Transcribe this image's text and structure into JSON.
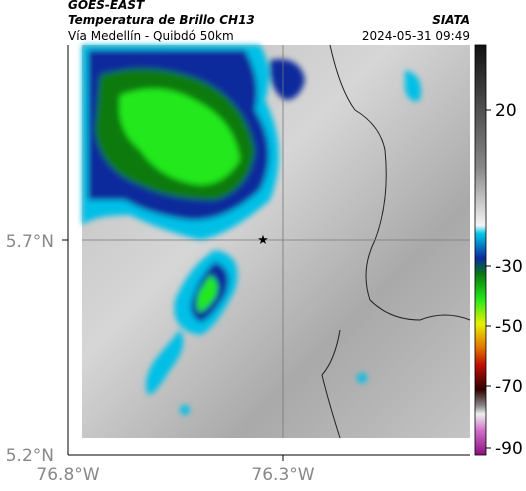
{
  "header": {
    "satellite": "GOES-EAST",
    "product": "Temperatura de Brillo CH13",
    "route": "Vía Medellín - Quibdó 50km",
    "source": "SIATA",
    "timestamp": "2024-05-31 09:49"
  },
  "axes": {
    "latitude_labels": [
      "5.7°N",
      "5.2°N"
    ],
    "longitude_labels": [
      "76.8°W",
      "76.3°W"
    ]
  },
  "colorbar": {
    "ticks": [
      20,
      -30,
      -50,
      -70,
      -90
    ]
  }
}
